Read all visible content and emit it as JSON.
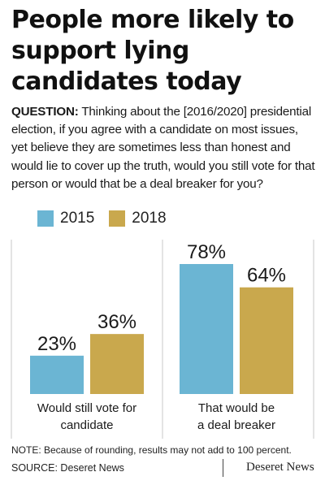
{
  "title": [
    "People more likely to",
    "support lying",
    "candidates today"
  ],
  "question": {
    "label": "QUESTION:",
    "text": " Thinking about the [2016/2020] presidential election, if you agree with a candidate on most issues, yet believe they are sometimes less than honest and would lie to cover up the truth, would you still vote for that person or would that be a deal breaker for you?"
  },
  "colors": {
    "series_2015": "#6bb5d3",
    "series_2018": "#c9a84d",
    "gridline": "#c8c8c8",
    "text": "#1a1a1a"
  },
  "chart_data": {
    "type": "bar",
    "categories": [
      [
        "Would still vote for",
        "candidate"
      ],
      [
        "That would be",
        "a deal breaker"
      ]
    ],
    "series": [
      {
        "name": "2015",
        "values": [
          23,
          78
        ],
        "labels": [
          "23%",
          "78%"
        ]
      },
      {
        "name": "2018",
        "values": [
          36,
          64
        ],
        "labels": [
          "36%",
          "64%"
        ]
      }
    ],
    "ylim": [
      0,
      78
    ],
    "legend_position": "top-left",
    "grid": false
  },
  "note": "NOTE: Because of rounding, results may not add to 100 percent.",
  "source": "SOURCE: Deseret News",
  "logo_text": "Deseret News"
}
